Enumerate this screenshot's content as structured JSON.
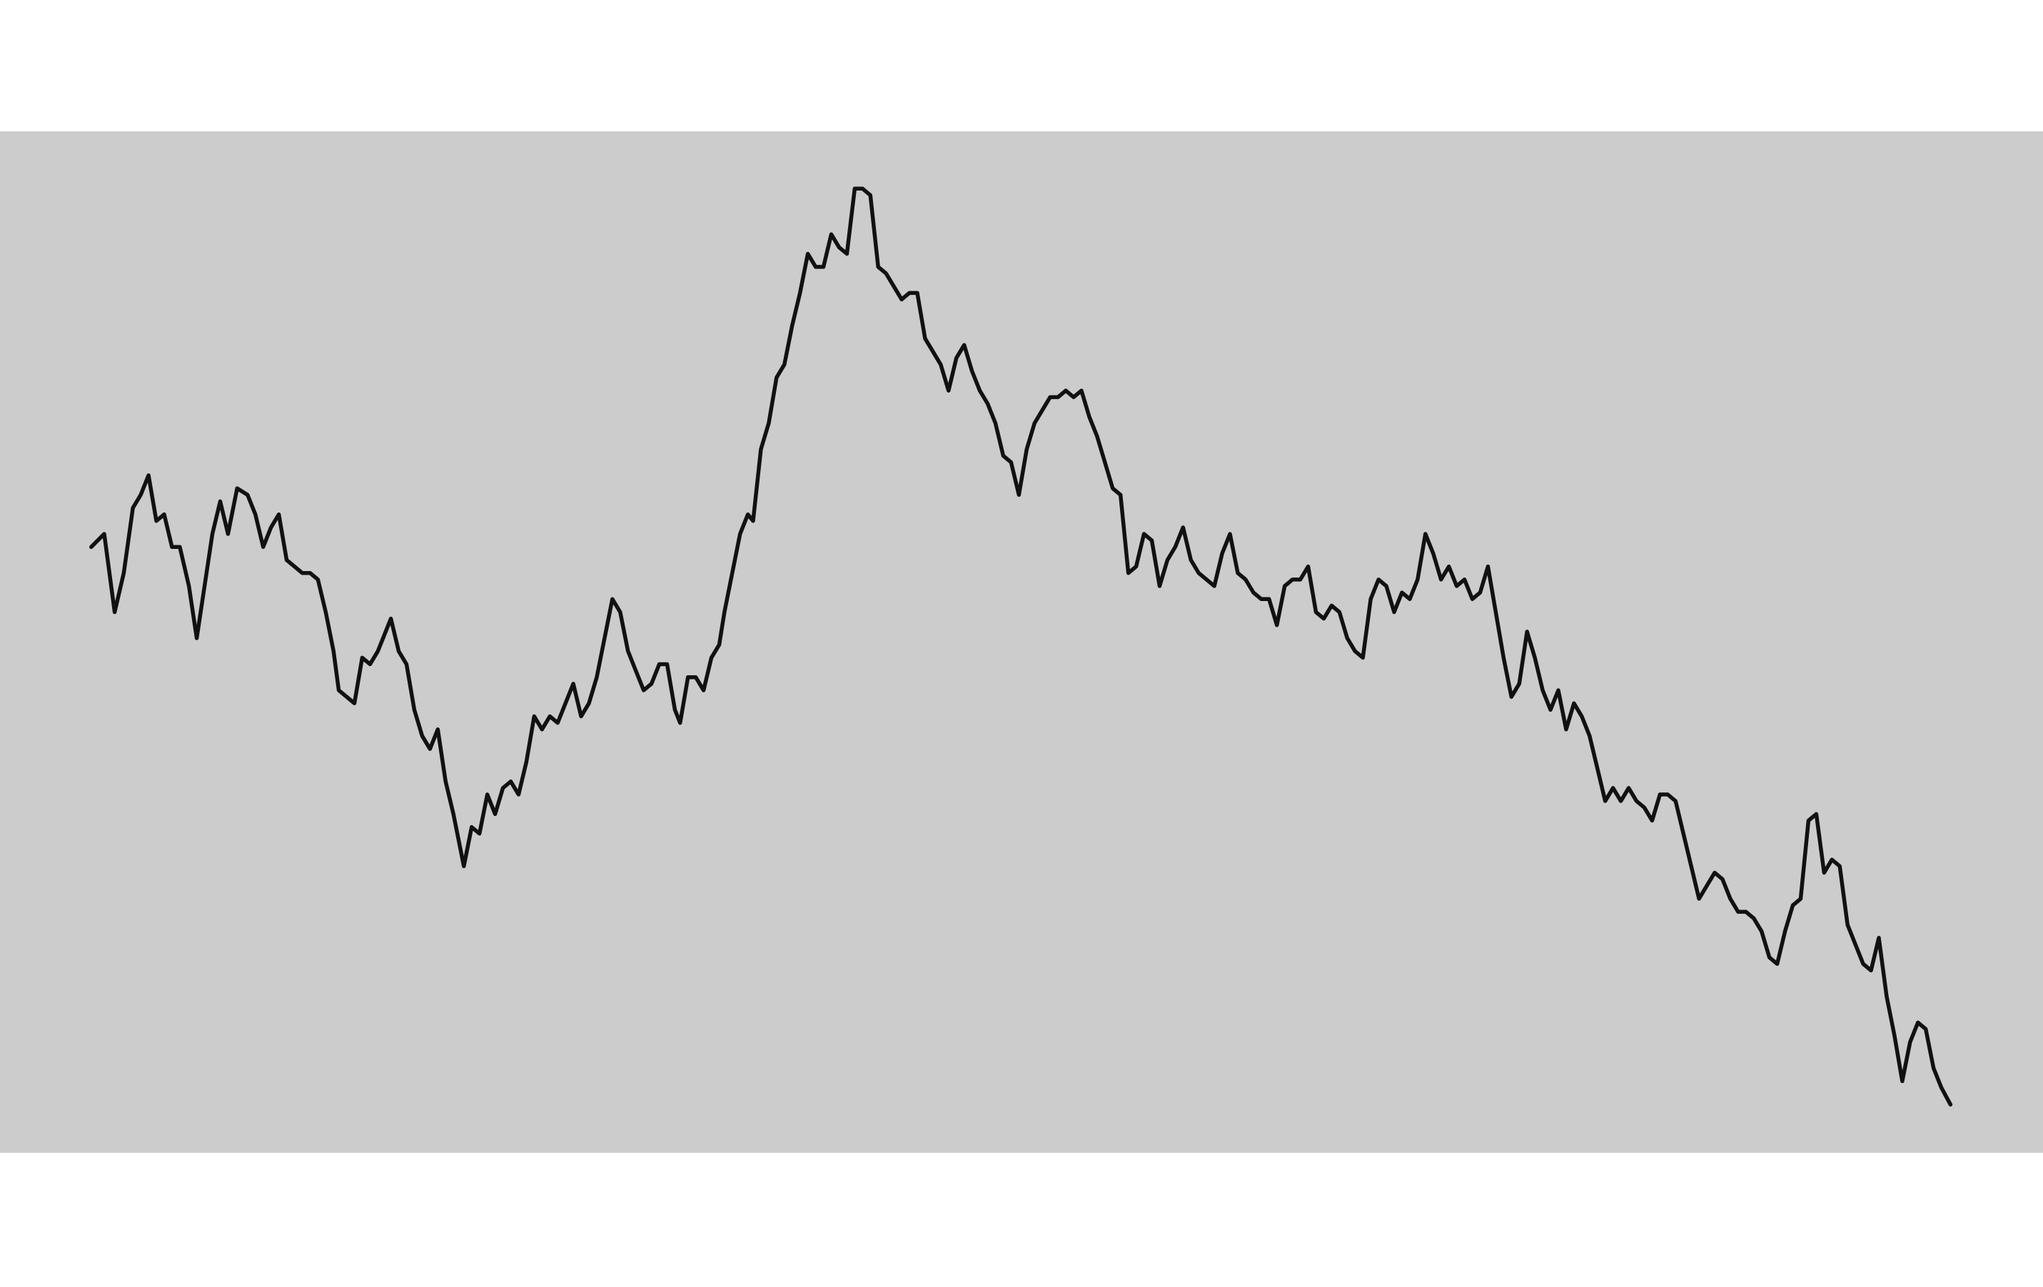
{
  "chart_data": {
    "type": "line",
    "color": "#111111",
    "panel_color": "#cccccc",
    "xlim": [
      0,
      1568
    ],
    "ylim": [
      0,
      784
    ],
    "x": [
      70,
      80,
      88,
      95,
      102,
      108,
      114,
      120,
      126,
      132,
      138,
      145,
      151,
      157,
      163,
      169,
      175,
      182,
      190,
      196,
      202,
      208,
      214,
      220,
      226,
      232,
      238,
      244,
      250,
      256,
      260,
      266,
      272,
      278,
      284,
      290,
      296,
      300,
      306,
      312,
      318,
      324,
      330,
      336,
      342,
      348,
      352,
      356,
      362,
      368,
      374,
      380,
      386,
      392,
      398,
      404,
      410,
      416,
      422,
      428,
      434,
      440,
      446,
      452,
      458,
      464,
      470,
      476,
      482,
      488,
      494,
      500,
      506,
      512,
      518,
      522,
      528,
      534,
      540,
      546,
      552,
      556,
      562,
      568,
      574,
      578,
      584,
      590,
      596,
      602,
      608,
      614,
      620,
      626,
      632,
      638,
      644,
      650,
      656,
      662,
      668,
      674,
      680,
      686,
      692,
      698,
      704,
      710,
      716,
      722,
      728,
      734,
      740,
      746,
      752,
      758,
      764,
      770,
      776,
      782,
      788,
      794,
      800,
      806,
      812,
      818,
      824,
      830,
      836,
      842,
      848,
      854,
      860,
      866,
      872,
      878,
      884,
      890,
      896,
      902,
      908,
      914,
      920,
      926,
      932,
      938,
      944,
      950,
      956,
      962,
      968,
      974,
      980,
      986,
      992,
      998,
      1004,
      1010,
      1016,
      1022,
      1028,
      1034,
      1040,
      1046,
      1052,
      1058,
      1064,
      1070,
      1076,
      1082,
      1088,
      1094,
      1100,
      1106,
      1112,
      1118,
      1124,
      1130,
      1136,
      1142,
      1148,
      1154,
      1160,
      1166,
      1172,
      1178,
      1184,
      1190,
      1196,
      1202,
      1208,
      1214,
      1220,
      1226,
      1232,
      1238,
      1244,
      1250,
      1256,
      1262,
      1268,
      1274,
      1280,
      1286,
      1292,
      1298,
      1304,
      1310,
      1316,
      1322,
      1328,
      1334,
      1340,
      1346,
      1352,
      1358,
      1364,
      1370,
      1376,
      1382,
      1388,
      1394,
      1400,
      1406,
      1412,
      1418,
      1424,
      1430,
      1436,
      1442,
      1448,
      1454,
      1460,
      1466,
      1472,
      1478,
      1484,
      1490,
      1497
    ],
    "values": [
      465,
      475,
      415,
      445,
      495,
      505,
      520,
      485,
      490,
      465,
      465,
      435,
      395,
      435,
      475,
      500,
      475,
      510,
      505,
      490,
      465,
      480,
      490,
      455,
      450,
      445,
      445,
      440,
      415,
      385,
      355,
      350,
      345,
      380,
      375,
      385,
      400,
      410,
      385,
      375,
      340,
      320,
      310,
      325,
      285,
      260,
      240,
      220,
      250,
      245,
      275,
      260,
      280,
      285,
      275,
      300,
      335,
      325,
      335,
      330,
      345,
      360,
      335,
      345,
      365,
      395,
      425,
      415,
      385,
      370,
      355,
      360,
      375,
      375,
      340,
      330,
      365,
      365,
      355,
      380,
      390,
      415,
      445,
      475,
      490,
      485,
      540,
      560,
      595,
      605,
      635,
      660,
      690,
      680,
      680,
      705,
      695,
      690,
      740,
      740,
      735,
      680,
      675,
      665,
      655,
      660,
      660,
      625,
      615,
      605,
      585,
      610,
      620,
      600,
      585,
      575,
      560,
      535,
      530,
      505,
      540,
      560,
      570,
      580,
      580,
      585,
      580,
      585,
      565,
      550,
      530,
      510,
      505,
      445,
      450,
      475,
      470,
      435,
      455,
      465,
      480,
      455,
      445,
      440,
      435,
      460,
      475,
      445,
      440,
      430,
      425,
      425,
      405,
      435,
      440,
      440,
      450,
      415,
      410,
      420,
      415,
      395,
      385,
      380,
      425,
      440,
      435,
      415,
      430,
      425,
      440,
      475,
      460,
      440,
      450,
      435,
      440,
      425,
      430,
      450,
      415,
      380,
      350,
      360,
      400,
      380,
      355,
      340,
      355,
      325,
      345,
      335,
      320,
      295,
      270,
      280,
      270,
      280,
      270,
      265,
      255,
      275,
      275,
      270,
      245,
      220,
      195,
      205,
      215,
      210,
      195,
      185,
      185,
      180,
      170,
      150,
      145,
      170,
      190,
      195,
      255,
      260,
      215,
      225,
      220,
      175,
      160,
      145,
      140,
      165,
      120,
      90,
      55,
      85,
      100,
      95,
      65,
      50,
      37
    ]
  }
}
